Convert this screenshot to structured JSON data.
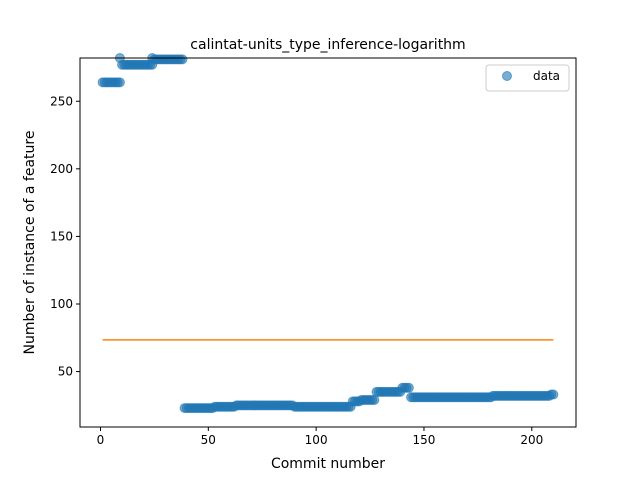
{
  "chart_data": {
    "type": "scatter",
    "title": "calintat-units_type_inference-logarithm",
    "xlabel": "Commit number",
    "ylabel": "Number of instance of a feature",
    "xlim": [
      -9.5,
      220.5
    ],
    "ylim": [
      9,
      282
    ],
    "xticks": [
      0,
      50,
      100,
      150,
      200
    ],
    "yticks": [
      50,
      100,
      150,
      200,
      250
    ],
    "grid": false,
    "legend": {
      "placement": "top-right",
      "entries": [
        "data"
      ]
    },
    "colors": {
      "data": "#1f77b4",
      "fit": "#ff7f0e"
    },
    "series": [
      {
        "name": "data",
        "style": "markers",
        "segments": [
          {
            "x_start": 1,
            "x_end": 9,
            "y": 264
          },
          {
            "x_start": 10,
            "x_end": 24,
            "y": 277
          },
          {
            "x_start": 9,
            "x_end": 9,
            "y": 282
          },
          {
            "x_start": 24,
            "x_end": 24,
            "y": 282
          },
          {
            "x_start": 25,
            "x_end": 38,
            "y": 281
          },
          {
            "x_start": 39,
            "x_end": 52,
            "y": 23
          },
          {
            "x_start": 53,
            "x_end": 62,
            "y": 24
          },
          {
            "x_start": 63,
            "x_end": 89,
            "y": 25
          },
          {
            "x_start": 90,
            "x_end": 116,
            "y": 24
          },
          {
            "x_start": 117,
            "x_end": 120,
            "y": 28
          },
          {
            "x_start": 121,
            "x_end": 127,
            "y": 29
          },
          {
            "x_start": 128,
            "x_end": 139,
            "y": 35
          },
          {
            "x_start": 140,
            "x_end": 143,
            "y": 38
          },
          {
            "x_start": 144,
            "x_end": 181,
            "y": 31
          },
          {
            "x_start": 182,
            "x_end": 208,
            "y": 32
          },
          {
            "x_start": 209,
            "x_end": 210,
            "y": 33
          }
        ]
      },
      {
        "style": "line",
        "x": [
          1,
          210
        ],
        "y": [
          73.5,
          73.5
        ]
      }
    ]
  }
}
